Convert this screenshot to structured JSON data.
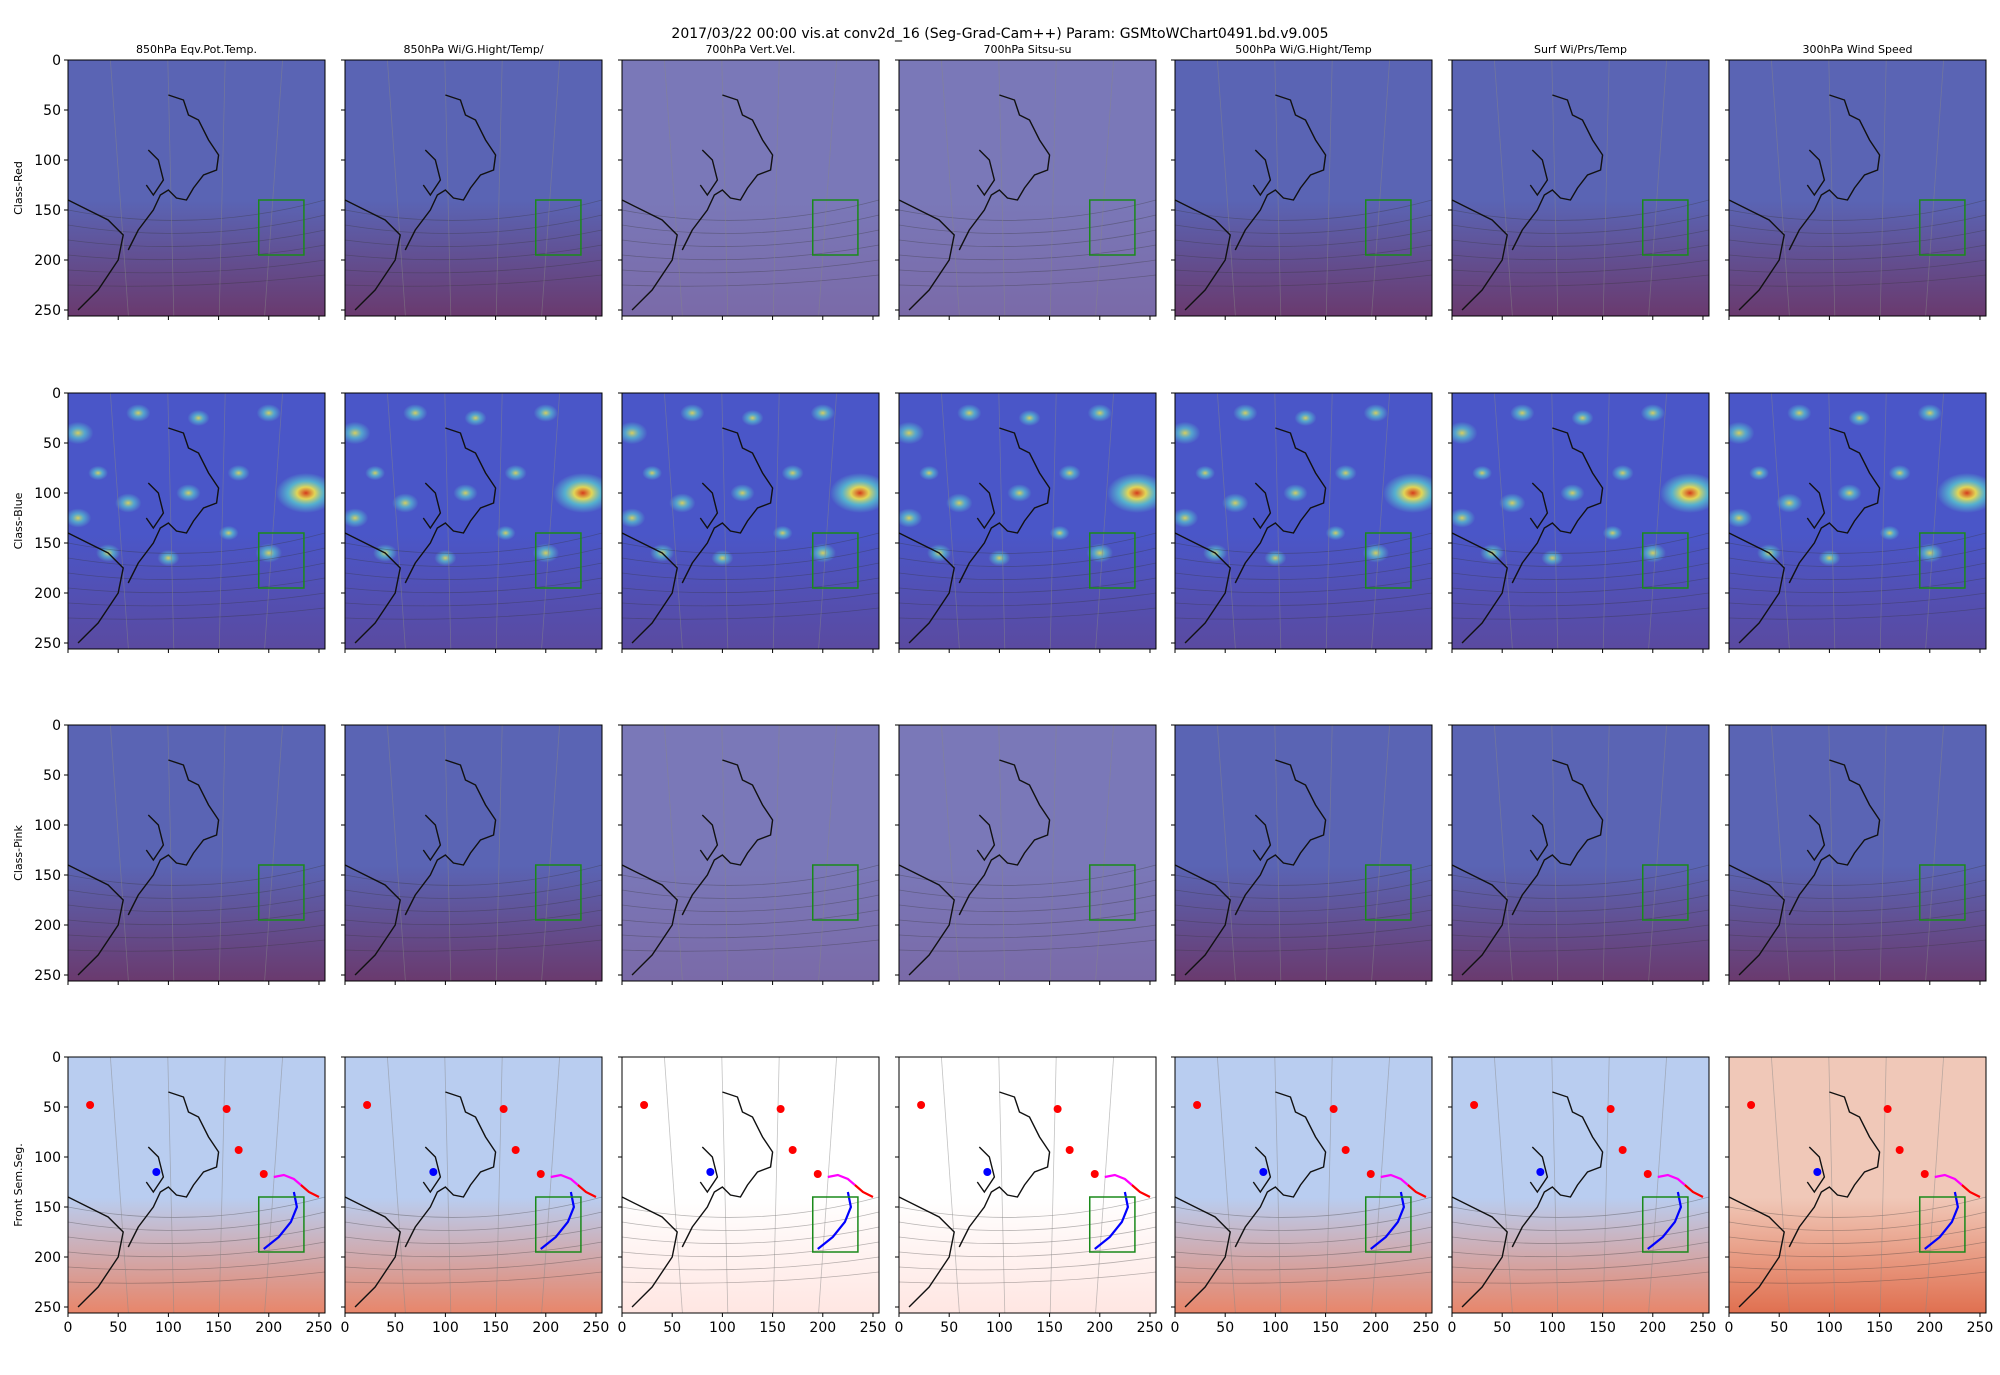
{
  "figure": {
    "title": "2017/03/22 00:00 vis.at conv2d_16 (Seg-Grad-Cam++) Param: GSMtoWChart0491.bd.v9.005",
    "columns": [
      "850hPa Eqv.Pot.Temp.",
      "850hPa Wi/G.Hight/Temp/",
      "700hPa Vert.Vel.",
      "700hPa Sitsu-su",
      "500hPa Wi/G.Hight/Temp",
      "Surf Wi/Prs/Temp",
      "300hPa Wind Speed"
    ],
    "rows": [
      {
        "label": "Class-Red",
        "overlay": "gradcam-low"
      },
      {
        "label": "Class-Blue",
        "overlay": "gradcam-hot"
      },
      {
        "label": "Class-Pink",
        "overlay": "gradcam-low"
      },
      {
        "label": "Front Sem.Seg.",
        "overlay": "segmentation"
      }
    ],
    "colors": {
      "overlay_blue": "#5a64b4",
      "overlay_dark": "#6a3a6e",
      "heat_hot": "#d43b1c",
      "heat_warm": "#f2e34a",
      "heat_cool": "#5ad6d2",
      "front_warm": "#ff0000",
      "front_cold": "#0000ff",
      "front_occluded": "#ff00ff",
      "box": "#1a8a1a",
      "coast": "#111111"
    }
  },
  "chart_data": {
    "type": "heatmap",
    "layout": "grid 4 rows x 7 columns of image panels",
    "xlim": [
      0,
      256
    ],
    "ylim": [
      256,
      0
    ],
    "xticks": [
      0,
      50,
      100,
      150,
      200,
      250
    ],
    "yticks": [
      0,
      50,
      100,
      150,
      200,
      250
    ],
    "x_tick_labels_shown_on": "bottom row only",
    "y_tick_labels_shown_on": "first column only",
    "focus_box": {
      "x": [
        190,
        235
      ],
      "y": [
        140,
        195
      ]
    },
    "gradcam_hotspots": [
      {
        "x": 237,
        "y": 100,
        "intensity": 1.0
      },
      {
        "x": 10,
        "y": 40,
        "intensity": 0.7
      },
      {
        "x": 10,
        "y": 125,
        "intensity": 0.6
      },
      {
        "x": 70,
        "y": 20,
        "intensity": 0.55
      },
      {
        "x": 130,
        "y": 25,
        "intensity": 0.5
      },
      {
        "x": 200,
        "y": 20,
        "intensity": 0.55
      },
      {
        "x": 60,
        "y": 110,
        "intensity": 0.6
      },
      {
        "x": 120,
        "y": 100,
        "intensity": 0.55
      },
      {
        "x": 170,
        "y": 80,
        "intensity": 0.5
      },
      {
        "x": 40,
        "y": 160,
        "intensity": 0.55
      },
      {
        "x": 100,
        "y": 165,
        "intensity": 0.5
      },
      {
        "x": 200,
        "y": 160,
        "intensity": 0.6
      },
      {
        "x": 160,
        "y": 140,
        "intensity": 0.45
      },
      {
        "x": 30,
        "y": 80,
        "intensity": 0.45
      }
    ],
    "fronts": {
      "cold": [
        [
          225,
          135
        ],
        [
          228,
          150
        ],
        [
          222,
          165
        ],
        [
          210,
          180
        ],
        [
          195,
          192
        ]
      ],
      "occluded": [
        [
          205,
          120
        ],
        [
          215,
          118
        ],
        [
          225,
          122
        ],
        [
          232,
          128
        ]
      ],
      "warm": [
        [
          232,
          128
        ],
        [
          240,
          135
        ],
        [
          250,
          140
        ]
      ]
    },
    "high_markers": [
      [
        22,
        48
      ],
      [
        158,
        52
      ],
      [
        170,
        93
      ],
      [
        195,
        117
      ]
    ],
    "low_markers": [
      [
        88,
        115
      ]
    ]
  }
}
